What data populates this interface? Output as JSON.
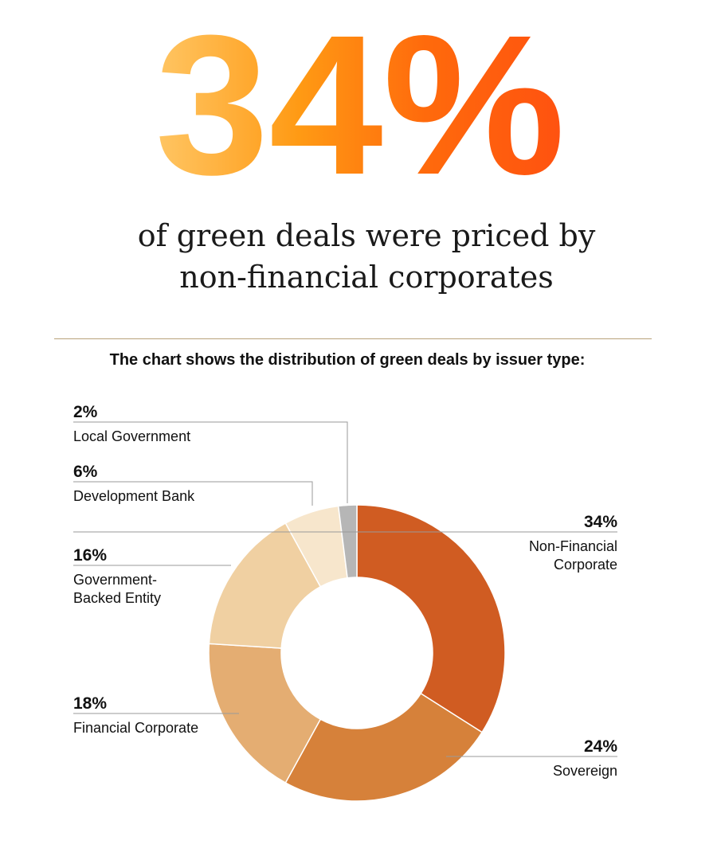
{
  "headline": {
    "value": "34%",
    "text_lines": [
      "of green deals were priced by",
      "non-financial corporates"
    ],
    "gradient": [
      "#ffc766",
      "#ff9a14",
      "#ff6a0c",
      "#ff5010"
    ]
  },
  "chart_caption": "The chart shows the distribution of green deals by issuer type:",
  "chart_data": {
    "type": "pie",
    "donut": true,
    "total": 100,
    "start_angle_deg": 0,
    "direction": "clockwise",
    "series": [
      {
        "pct_label": "34%",
        "value": 34,
        "label_lines": [
          "Non-Financial",
          "Corporate"
        ],
        "color": "#d05c22",
        "side": "right"
      },
      {
        "pct_label": "24%",
        "value": 24,
        "label_lines": [
          "Sovereign"
        ],
        "color": "#d6813a",
        "side": "right"
      },
      {
        "pct_label": "18%",
        "value": 18,
        "label_lines": [
          "Financial Corporate"
        ],
        "color": "#e4ad72",
        "side": "left"
      },
      {
        "pct_label": "16%",
        "value": 16,
        "label_lines": [
          "Government-",
          "Backed Entity"
        ],
        "color": "#f0d0a2",
        "side": "left"
      },
      {
        "pct_label": "6%",
        "value": 6,
        "label_lines": [
          "Development Bank"
        ],
        "color": "#f7e6cc",
        "side": "left"
      },
      {
        "pct_label": "2%",
        "value": 2,
        "label_lines": [
          "Local Government"
        ],
        "color": "#b6b6b6",
        "side": "left"
      }
    ]
  }
}
